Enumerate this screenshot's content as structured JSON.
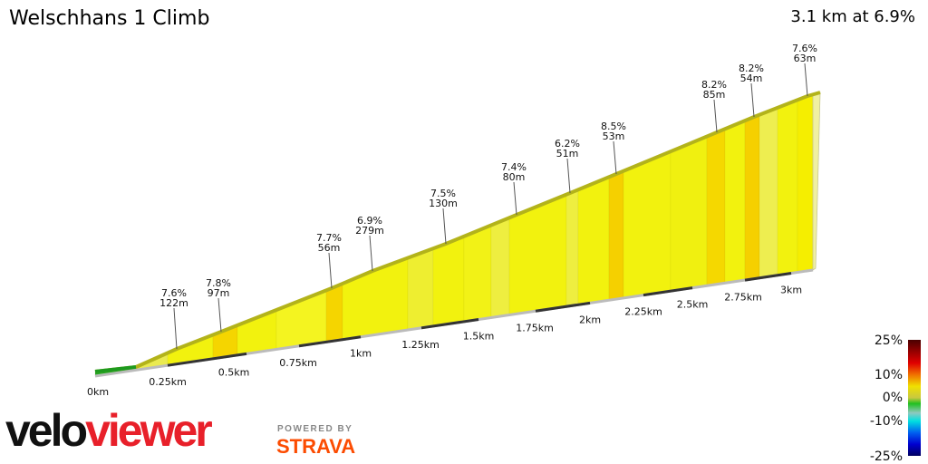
{
  "header": {
    "title": "Welschhans 1 Climb",
    "summary": "3.1 km at 6.9%"
  },
  "chart_data": {
    "type": "area",
    "title": "Welschhans 1 Climb",
    "subtitle": "3.1 km at 6.9%",
    "x_ticks": [
      "0km",
      "0.25km",
      "0.5km",
      "0.75km",
      "1km",
      "1.25km",
      "1.5km",
      "1.75km",
      "2km",
      "2.25km",
      "2.5km",
      "2.75km",
      "3km"
    ],
    "segments": [
      {
        "grade": "7.6%",
        "length": "122m"
      },
      {
        "grade": "7.8%",
        "length": "97m"
      },
      {
        "grade": "7.7%",
        "length": "56m"
      },
      {
        "grade": "6.9%",
        "length": "279m"
      },
      {
        "grade": "7.5%",
        "length": "130m"
      },
      {
        "grade": "7.4%",
        "length": "80m"
      },
      {
        "grade": "6.2%",
        "length": "51m"
      },
      {
        "grade": "8.5%",
        "length": "53m"
      },
      {
        "grade": "8.2%",
        "length": "85m"
      },
      {
        "grade": "8.2%",
        "length": "54m"
      },
      {
        "grade": "7.6%",
        "length": "63m"
      }
    ],
    "legend": {
      "ticks": [
        "25%",
        "10%",
        "0%",
        "-10%",
        "-25%"
      ],
      "placement": "bottom-right"
    },
    "colors": {
      "flat": "#22aa22",
      "moderate": "#f2f20e",
      "steeper": "#f5d500",
      "edge": "#b3b31a"
    }
  },
  "branding": {
    "logo_part1": "velo",
    "logo_part2": "viewer",
    "powered_by": "POWERED BY",
    "strava": "STRAVA"
  }
}
